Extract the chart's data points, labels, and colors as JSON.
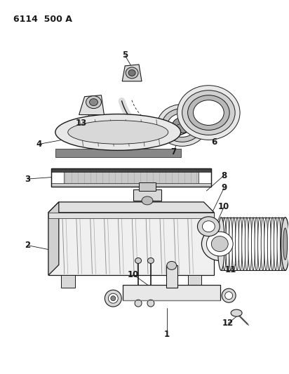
{
  "title": "6114  500 A",
  "bg": "#ffffff",
  "lc": "#1a1a1a",
  "figsize": [
    4.12,
    5.33
  ],
  "dpi": 100,
  "font_size": 8.5
}
